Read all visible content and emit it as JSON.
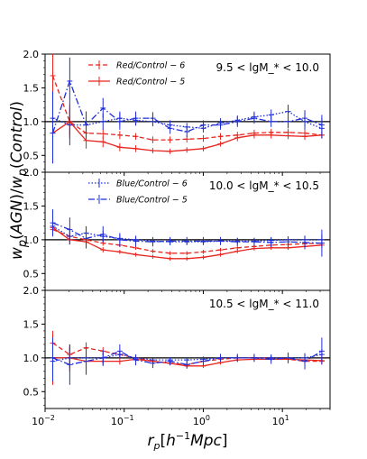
{
  "chart_data": {
    "type": "line",
    "xscale": "log",
    "xlim": [
      0.01,
      40
    ],
    "xticks": [
      "10^-2",
      "10^-1",
      "10^0",
      "10^1"
    ],
    "xlabel": "r_p[h^-1 Mpc]",
    "ylabel": "w_p(AGN)/w_p(Control)",
    "ylim": [
      0.25,
      2.0
    ],
    "yticks": [
      "0.5",
      "1.0",
      "1.5",
      "2.0"
    ],
    "reference_line_y": 1.0,
    "x": [
      0.0125,
      0.0205,
      0.033,
      0.054,
      0.088,
      0.14,
      0.23,
      0.38,
      0.62,
      1.0,
      1.65,
      2.7,
      4.4,
      7.2,
      11.8,
      19.2,
      31.5
    ],
    "panels": [
      {
        "annotation": "9.5 < lgM_* < 10.0",
        "legend": "top-left",
        "series": [
          {
            "name": "Red/Control − 6",
            "color": "#e8251f",
            "linestyle": "dashed",
            "values": [
              1.68,
              1.0,
              0.83,
              0.82,
              0.8,
              0.78,
              0.73,
              0.73,
              0.74,
              0.75,
              0.78,
              0.8,
              0.83,
              0.84,
              0.84,
              0.83,
              0.8
            ],
            "errors": [
              0.35,
              0.2,
              0.1,
              0.07,
              0.06,
              0.05,
              0.05,
              0.05,
              0.05,
              0.05,
              0.05,
              0.05,
              0.05,
              0.05,
              0.05,
              0.05,
              0.05
            ]
          },
          {
            "name": "Red/Control − 5",
            "color": "#e8251f",
            "linestyle": "solid",
            "values": [
              0.83,
              1.0,
              0.72,
              0.7,
              0.62,
              0.6,
              0.57,
              0.56,
              0.58,
              0.6,
              0.67,
              0.76,
              0.8,
              0.8,
              0.79,
              0.78,
              0.8
            ],
            "errors": [
              0.35,
              0.25,
              0.12,
              0.08,
              0.06,
              0.05,
              0.04,
              0.04,
              0.04,
              0.04,
              0.04,
              0.05,
              0.05,
              0.05,
              0.05,
              0.05,
              0.05
            ]
          },
          {
            "name": "Blue/Control − 6",
            "color": "#1f2ed8",
            "linestyle": "dotted",
            "values": [
              1.05,
              0.95,
              0.95,
              1.0,
              1.05,
              1.02,
              1.0,
              0.95,
              0.92,
              0.9,
              0.98,
              1.02,
              1.07,
              1.1,
              1.15,
              1.0,
              0.9
            ],
            "errors": [
              0.4,
              0.3,
              0.2,
              0.12,
              0.1,
              0.08,
              0.07,
              0.07,
              0.06,
              0.06,
              0.07,
              0.07,
              0.08,
              0.08,
              0.1,
              0.12,
              0.15
            ]
          },
          {
            "name": "Blue/Control − 5",
            "color": "#1f2ed8",
            "linestyle": "dashdot",
            "values": [
              0.83,
              1.6,
              0.95,
              1.2,
              1.0,
              1.05,
              1.05,
              0.9,
              0.85,
              0.95,
              0.95,
              1.0,
              1.05,
              1.0,
              1.0,
              1.05,
              0.95
            ],
            "errors": [
              0.45,
              0.35,
              0.2,
              0.15,
              0.12,
              0.1,
              0.09,
              0.08,
              0.08,
              0.07,
              0.07,
              0.08,
              0.08,
              0.08,
              0.1,
              0.12,
              0.15
            ]
          }
        ]
      },
      {
        "annotation": "10.0 < lgM_* < 10.5",
        "legend": "top-left",
        "series": [
          {
            "name": "Red/Control − 6",
            "color": "#e8251f",
            "linestyle": "dashed",
            "values": [
              1.15,
              1.05,
              1.0,
              0.95,
              0.92,
              0.88,
              0.83,
              0.8,
              0.8,
              0.82,
              0.85,
              0.88,
              0.9,
              0.92,
              0.93,
              0.94,
              0.95
            ],
            "errors": [
              0.08,
              0.06,
              0.05,
              0.04,
              0.03,
              0.03,
              0.03,
              0.03,
              0.03,
              0.03,
              0.03,
              0.03,
              0.03,
              0.03,
              0.03,
              0.04,
              0.05
            ]
          },
          {
            "name": "Red/Control − 5",
            "color": "#e8251f",
            "linestyle": "solid",
            "values": [
              1.18,
              1.0,
              0.97,
              0.85,
              0.82,
              0.78,
              0.75,
              0.72,
              0.72,
              0.74,
              0.78,
              0.83,
              0.87,
              0.88,
              0.88,
              0.9,
              0.92
            ],
            "errors": [
              0.1,
              0.07,
              0.05,
              0.04,
              0.03,
              0.03,
              0.03,
              0.03,
              0.03,
              0.03,
              0.03,
              0.03,
              0.03,
              0.03,
              0.03,
              0.04,
              0.05
            ]
          },
          {
            "name": "Blue/Control − 6",
            "color": "#1f2ed8",
            "linestyle": "dotted",
            "values": [
              1.2,
              1.05,
              1.1,
              1.05,
              1.02,
              1.0,
              0.98,
              0.97,
              0.97,
              0.97,
              0.98,
              0.98,
              0.98,
              0.99,
              1.0,
              1.0,
              1.0
            ],
            "errors": [
              0.15,
              0.12,
              0.1,
              0.08,
              0.06,
              0.05,
              0.05,
              0.05,
              0.04,
              0.04,
              0.04,
              0.04,
              0.04,
              0.05,
              0.05,
              0.06,
              0.08
            ]
          },
          {
            "name": "Blue/Control − 5",
            "color": "#1f2ed8",
            "linestyle": "dashdot",
            "values": [
              1.25,
              1.15,
              1.02,
              1.08,
              1.0,
              0.98,
              0.97,
              0.98,
              0.98,
              0.98,
              0.98,
              0.97,
              0.97,
              0.96,
              0.97,
              0.96,
              0.95
            ],
            "errors": [
              0.2,
              0.18,
              0.15,
              0.12,
              0.1,
              0.08,
              0.07,
              0.06,
              0.06,
              0.06,
              0.06,
              0.06,
              0.06,
              0.07,
              0.08,
              0.1,
              0.2
            ]
          }
        ]
      },
      {
        "annotation": "10.5 < lgM_* < 11.0",
        "legend": "none",
        "series": [
          {
            "name": "Red/Control − 6",
            "color": "#e8251f",
            "linestyle": "dashed",
            "values": [
              1.22,
              1.05,
              1.15,
              1.1,
              1.05,
              1.0,
              0.95,
              0.92,
              0.9,
              0.95,
              0.98,
              1.0,
              1.0,
              1.0,
              0.98,
              0.95,
              0.95
            ],
            "errors": [
              0.15,
              0.12,
              0.08,
              0.06,
              0.05,
              0.04,
              0.04,
              0.03,
              0.03,
              0.03,
              0.03,
              0.03,
              0.03,
              0.03,
              0.03,
              0.04,
              0.05
            ]
          },
          {
            "name": "Red/Control − 5",
            "color": "#e8251f",
            "linestyle": "solid",
            "values": [
              1.0,
              1.0,
              0.95,
              0.95,
              0.95,
              0.98,
              0.95,
              0.92,
              0.88,
              0.88,
              0.93,
              0.97,
              0.98,
              0.98,
              0.98,
              0.97,
              0.96
            ],
            "errors": [
              0.4,
              0.2,
              0.1,
              0.06,
              0.05,
              0.04,
              0.04,
              0.03,
              0.03,
              0.03,
              0.03,
              0.03,
              0.03,
              0.03,
              0.03,
              0.04,
              0.05
            ]
          },
          {
            "name": "Blue/Control − 6",
            "color": "#1f2ed8",
            "linestyle": "dotted",
            "values": [
              0.95,
              1.0,
              1.0,
              1.0,
              1.05,
              1.0,
              0.97,
              0.97,
              0.97,
              0.98,
              1.0,
              1.0,
              1.0,
              1.0,
              1.0,
              1.0,
              1.05
            ],
            "errors": [
              0.3,
              0.15,
              0.1,
              0.08,
              0.06,
              0.05,
              0.04,
              0.04,
              0.04,
              0.04,
              0.04,
              0.04,
              0.04,
              0.04,
              0.05,
              0.06,
              0.08
            ]
          },
          {
            "name": "Blue/Control − 5",
            "color": "#1f2ed8",
            "linestyle": "dashdot",
            "values": [
              1.0,
              0.9,
              0.95,
              1.0,
              1.1,
              0.97,
              0.92,
              0.95,
              0.9,
              0.95,
              1.0,
              1.0,
              1.0,
              0.98,
              1.0,
              0.95,
              1.1
            ],
            "errors": [
              0.3,
              0.3,
              0.2,
              0.12,
              0.1,
              0.08,
              0.07,
              0.06,
              0.06,
              0.06,
              0.06,
              0.06,
              0.06,
              0.07,
              0.08,
              0.12,
              0.2
            ]
          }
        ]
      }
    ]
  }
}
